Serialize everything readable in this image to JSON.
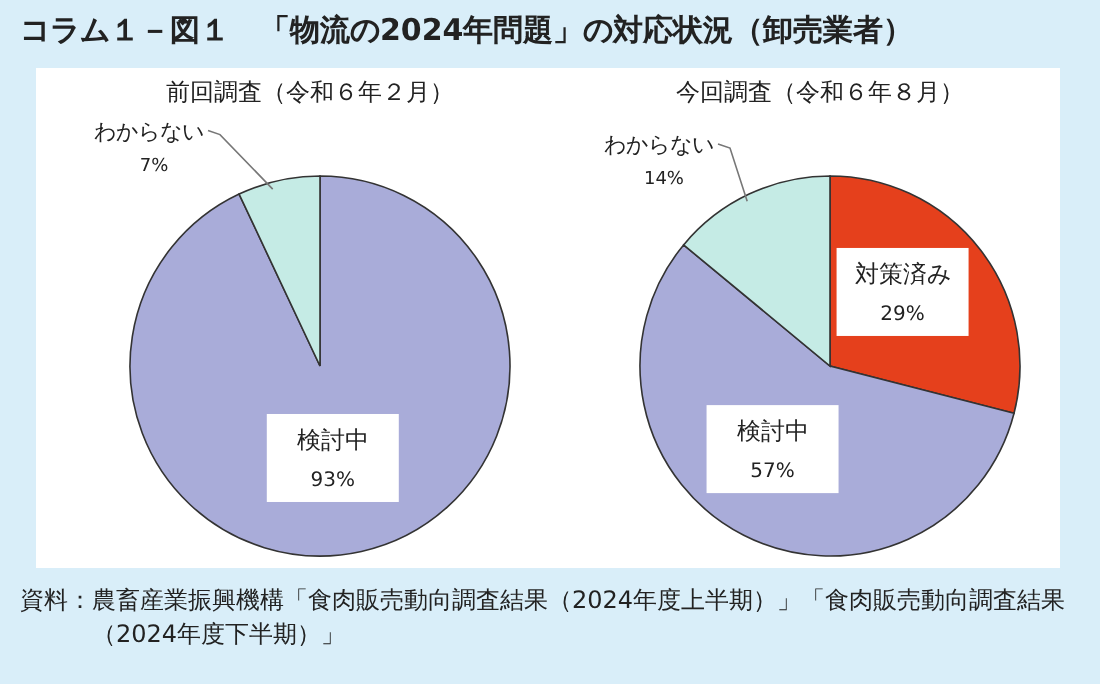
{
  "chart_data": [
    {
      "type": "pie",
      "title": "コラム１－図１　「物流の2024年問題」の対応状況（卸売業者）",
      "subtitle": "前回調査（令和６年２月）",
      "categories": [
        "検討中",
        "わからない"
      ],
      "values": [
        93,
        7
      ],
      "value_labels": [
        "93%",
        "7%"
      ],
      "colors": [
        "#a9acd9",
        "#c5ebe5"
      ]
    },
    {
      "type": "pie",
      "subtitle": "今回調査（令和６年８月）",
      "categories": [
        "対策済み",
        "検討中",
        "わからない"
      ],
      "values": [
        29,
        57,
        14
      ],
      "value_labels": [
        "29%",
        "57%",
        "14%"
      ],
      "colors": [
        "#e5401c",
        "#a9acd9",
        "#c5ebe5"
      ],
      "annotations": [
        "資料：農畜産業振興機構「食肉販売動向調査結果（2024年度上半期）」「食肉販売動向調査結果（2024年度下半期）」"
      ]
    }
  ]
}
